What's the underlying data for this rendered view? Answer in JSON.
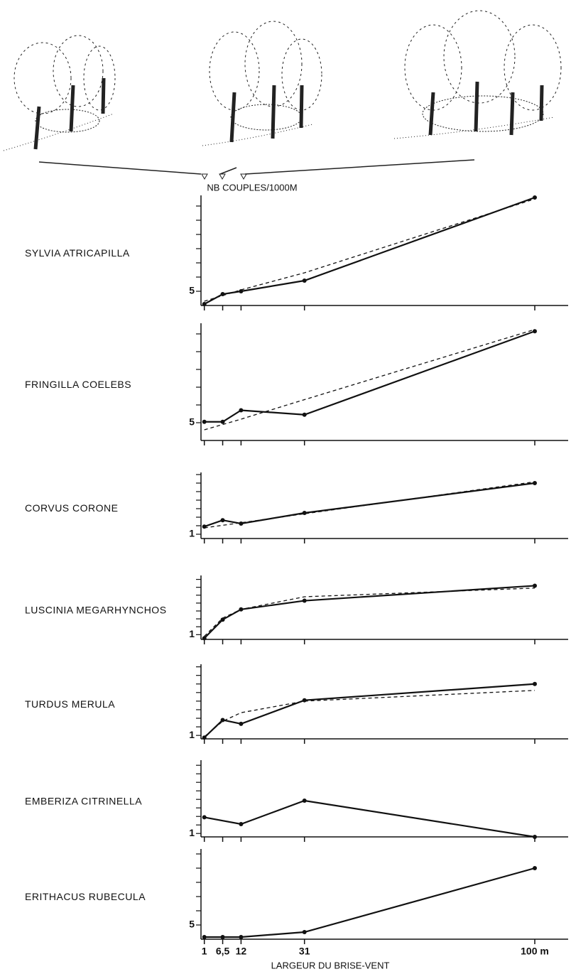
{
  "chart_data": [
    {
      "type": "line",
      "title": "SYLVIA ATRICAPILLA",
      "ylabel": "NB COUPLES/1000M",
      "x": [
        1,
        6.5,
        12,
        31,
        100
      ],
      "xlim": [
        0,
        110
      ],
      "xticks": [
        {
          "value": 1,
          "label": null
        },
        {
          "value": 6.5,
          "label": null
        },
        {
          "value": 12,
          "label": null
        },
        {
          "value": 31,
          "label": null
        },
        {
          "value": 100,
          "label": null
        }
      ],
      "ylim": [
        4,
        11.75
      ],
      "yticks": [
        5,
        {
          "value": 6,
          "label": null
        },
        {
          "value": 7,
          "label": null
        },
        {
          "value": 8,
          "label": null
        },
        {
          "value": 9,
          "label": null
        },
        {
          "value": 10,
          "label": null
        },
        {
          "value": 11,
          "label": null
        }
      ],
      "series": [
        {
          "color": "#111111",
          "style": "solid",
          "values": [
            4.1,
            4.8,
            5.0,
            5.75,
            11.6
          ]
        },
        {
          "color": "#111111",
          "style": "dashed",
          "values": [
            4.3,
            4.7,
            5.1,
            6.3,
            11.5
          ]
        }
      ]
    },
    {
      "type": "line",
      "title": "FRINGILLA COELEBS",
      "x": [
        1,
        6.5,
        12,
        31,
        100
      ],
      "xlim": [
        0,
        110
      ],
      "xticks": [
        {
          "value": 1,
          "label": null
        },
        {
          "value": 6.5,
          "label": null
        },
        {
          "value": 12,
          "label": null
        },
        {
          "value": 31,
          "label": null
        },
        {
          "value": 100,
          "label": null
        }
      ],
      "ylim": [
        4,
        10.6
      ],
      "yticks": [
        5,
        {
          "value": 6,
          "label": null
        },
        {
          "value": 7,
          "label": null
        },
        {
          "value": 8,
          "label": null
        },
        {
          "value": 9,
          "label": null
        },
        {
          "value": 10,
          "label": null
        }
      ],
      "series": [
        {
          "color": "#111111",
          "style": "solid",
          "values": [
            5.05,
            5.05,
            5.7,
            5.45,
            10.15
          ]
        },
        {
          "color": "#111111",
          "style": "dashed",
          "values": [
            4.6,
            4.9,
            5.2,
            6.3,
            10.25
          ]
        }
      ]
    },
    {
      "type": "line",
      "title": "CORVUS CORONE",
      "x": [
        1,
        6.5,
        12,
        31,
        100
      ],
      "xlim": [
        0,
        110
      ],
      "xticks": [
        {
          "value": 1,
          "label": null
        },
        {
          "value": 6.5,
          "label": null
        },
        {
          "value": 12,
          "label": null
        },
        {
          "value": 31,
          "label": null
        },
        {
          "value": 100,
          "label": null
        }
      ],
      "ylim": [
        0.5,
        8.25
      ],
      "yticks": [
        1,
        {
          "value": 2,
          "label": null
        },
        {
          "value": 3,
          "label": null
        },
        {
          "value": 4,
          "label": null
        },
        {
          "value": 5,
          "label": null
        },
        {
          "value": 6,
          "label": null
        },
        {
          "value": 7,
          "label": null
        },
        {
          "value": 8,
          "label": null
        }
      ],
      "series": [
        {
          "color": "#111111",
          "style": "solid",
          "values": [
            1.9,
            2.65,
            2.25,
            3.5,
            7.0
          ]
        },
        {
          "color": "#111111",
          "style": "dashed",
          "values": [
            1.75,
            2.05,
            2.35,
            3.4,
            7.15
          ]
        }
      ]
    },
    {
      "type": "line",
      "title": "LUSCINIA MEGARHYNCHOS",
      "x": [
        1,
        6.5,
        12,
        31,
        100
      ],
      "xlim": [
        0,
        110
      ],
      "xticks": [
        {
          "value": 1,
          "label": null
        },
        {
          "value": 6.5,
          "label": null
        },
        {
          "value": 12,
          "label": null
        },
        {
          "value": 31,
          "label": null
        },
        {
          "value": 100,
          "label": null
        }
      ],
      "ylim": [
        0.4,
        8.5
      ],
      "yticks": [
        1,
        {
          "value": 2,
          "label": null
        },
        {
          "value": 3,
          "label": null
        },
        {
          "value": 4,
          "label": null
        },
        {
          "value": 5,
          "label": null
        },
        {
          "value": 6,
          "label": null
        },
        {
          "value": 7,
          "label": null
        },
        {
          "value": 8,
          "label": null
        }
      ],
      "series": [
        {
          "color": "#111111",
          "style": "solid",
          "values": [
            0.55,
            2.9,
            4.2,
            5.3,
            7.2
          ]
        },
        {
          "color": "#111111",
          "style": "dashed",
          "values": [
            0.8,
            3.1,
            4.2,
            5.8,
            6.9
          ]
        }
      ]
    },
    {
      "type": "line",
      "title": "TURDUS MERULA",
      "x": [
        1,
        6.5,
        12,
        31,
        100
      ],
      "xlim": [
        0,
        110
      ],
      "xticks": [
        {
          "value": 1,
          "label": null
        },
        {
          "value": 6.5,
          "label": null
        },
        {
          "value": 12,
          "label": null
        },
        {
          "value": 31,
          "label": null
        },
        {
          "value": 100,
          "label": null
        }
      ],
      "ylim": [
        0.6,
        9.3
      ],
      "yticks": [
        1,
        {
          "value": 2,
          "label": null
        },
        {
          "value": 3,
          "label": null
        },
        {
          "value": 4,
          "label": null
        },
        {
          "value": 5,
          "label": null
        },
        {
          "value": 6,
          "label": null
        },
        {
          "value": 7,
          "label": null
        },
        {
          "value": 8,
          "label": null
        },
        {
          "value": 9,
          "label": null
        }
      ],
      "series": [
        {
          "color": "#111111",
          "style": "solid",
          "values": [
            0.75,
            2.8,
            2.35,
            5.1,
            7.0
          ]
        },
        {
          "color": "#111111",
          "style": "dashed",
          "values": [
            0.85,
            2.65,
            3.65,
            5.0,
            6.25
          ]
        }
      ]
    },
    {
      "type": "line",
      "title": "EMBERIZA CITRINELLA",
      "x": [
        1,
        12,
        31,
        100
      ],
      "xlim": [
        0,
        110
      ],
      "xticks": [
        {
          "value": 1,
          "label": null
        },
        {
          "value": 6.5,
          "label": null
        },
        {
          "value": 12,
          "label": null
        },
        {
          "value": 31,
          "label": null
        },
        {
          "value": 100,
          "label": null
        }
      ],
      "ylim": [
        0.6,
        9.6
      ],
      "yticks": [
        1,
        {
          "value": 2,
          "label": null
        },
        {
          "value": 3,
          "label": null
        },
        {
          "value": 4,
          "label": null
        },
        {
          "value": 5,
          "label": null
        },
        {
          "value": 6,
          "label": null
        },
        {
          "value": 7,
          "label": null
        },
        {
          "value": 8,
          "label": null
        },
        {
          "value": 9,
          "label": null
        }
      ],
      "series": [
        {
          "color": "#111111",
          "style": "solid",
          "values": [
            2.9,
            2.1,
            4.85,
            0.6
          ]
        }
      ]
    },
    {
      "type": "line",
      "title": "ERITHACUS RUBECULA",
      "xlabel": "LARGEUR DU BRISE-VENT",
      "x": [
        1,
        6.5,
        12,
        31,
        100
      ],
      "xlim": [
        0,
        110
      ],
      "xticks": [
        1,
        {
          "value": 6.5,
          "label": "6,5"
        },
        12,
        31,
        {
          "value": 100,
          "label": "100 m"
        }
      ],
      "ylim": [
        4,
        10.35
      ],
      "yticks": [
        5,
        {
          "value": 6,
          "label": null
        },
        {
          "value": 7,
          "label": null
        },
        {
          "value": 8,
          "label": null
        },
        {
          "value": 9,
          "label": null
        },
        {
          "value": 10,
          "label": null
        }
      ],
      "series": [
        {
          "color": "#111111",
          "style": "solid",
          "values": [
            4.15,
            4.15,
            4.15,
            4.5,
            9.0
          ]
        }
      ]
    }
  ]
}
